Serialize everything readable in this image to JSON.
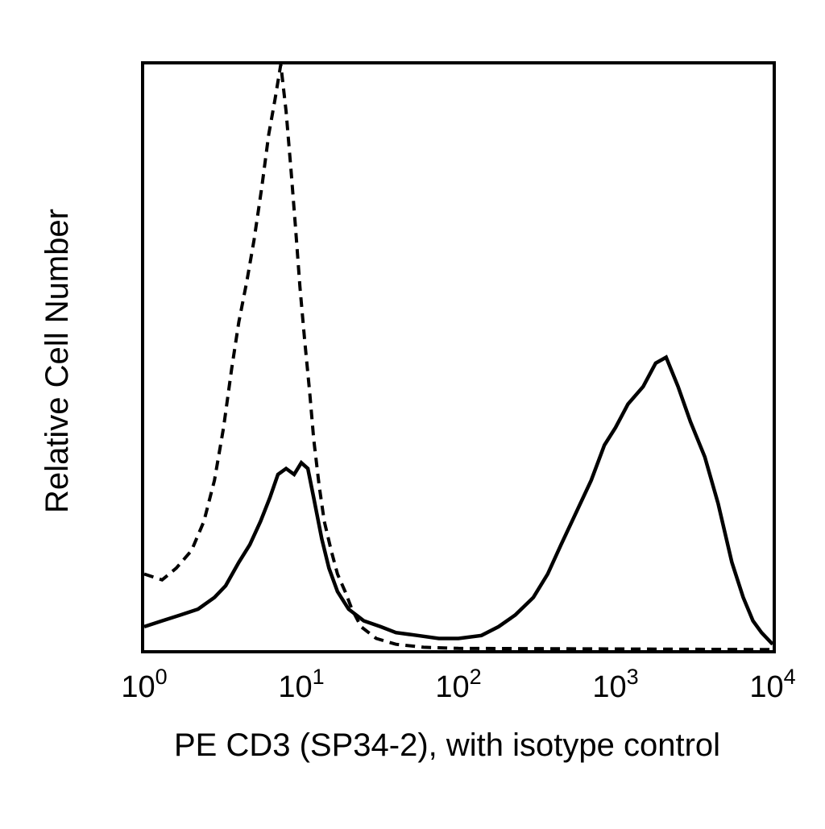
{
  "chart_data": {
    "type": "line",
    "xlabel": "PE CD3 (SP34-2), with isotype control",
    "ylabel": "Relative Cell Number",
    "x_scale": "log",
    "xlim": [
      1,
      10000
    ],
    "ylim": [
      0,
      100
    ],
    "x_ticks": [
      {
        "value": 1,
        "base": "10",
        "exp": "0"
      },
      {
        "value": 10,
        "base": "10",
        "exp": "1"
      },
      {
        "value": 100,
        "base": "10",
        "exp": "2"
      },
      {
        "value": 1000,
        "base": "10",
        "exp": "3"
      },
      {
        "value": 10000,
        "base": "10",
        "exp": "4"
      }
    ],
    "grid": false,
    "legend": "none",
    "series": [
      {
        "style": "solid",
        "color": "#000000",
        "points": [
          [
            1.0,
            4
          ],
          [
            1.3,
            5
          ],
          [
            1.7,
            6
          ],
          [
            2.2,
            7
          ],
          [
            2.8,
            9
          ],
          [
            3.3,
            11
          ],
          [
            4.0,
            15
          ],
          [
            4.7,
            18
          ],
          [
            5.5,
            22
          ],
          [
            6.3,
            26
          ],
          [
            7.1,
            30
          ],
          [
            8.0,
            31
          ],
          [
            9.0,
            30
          ],
          [
            10.0,
            32
          ],
          [
            11.0,
            31
          ],
          [
            12.0,
            26
          ],
          [
            13.5,
            19
          ],
          [
            15.0,
            14
          ],
          [
            17.0,
            10
          ],
          [
            20.0,
            7
          ],
          [
            25.0,
            5
          ],
          [
            32.0,
            4
          ],
          [
            40.0,
            3
          ],
          [
            55.0,
            2.5
          ],
          [
            75.0,
            2
          ],
          [
            100.0,
            2
          ],
          [
            140.0,
            2.5
          ],
          [
            180.0,
            4
          ],
          [
            230.0,
            6
          ],
          [
            300.0,
            9
          ],
          [
            370.0,
            13
          ],
          [
            450.0,
            18
          ],
          [
            550.0,
            23
          ],
          [
            700.0,
            29
          ],
          [
            850.0,
            35
          ],
          [
            1000.0,
            38
          ],
          [
            1200.0,
            42
          ],
          [
            1500.0,
            45
          ],
          [
            1800.0,
            49
          ],
          [
            2100.0,
            50
          ],
          [
            2500.0,
            45
          ],
          [
            3000.0,
            39
          ],
          [
            3700.0,
            33
          ],
          [
            4500.0,
            25
          ],
          [
            5500.0,
            15
          ],
          [
            6500.0,
            9
          ],
          [
            7500.0,
            5
          ],
          [
            8500.0,
            3
          ],
          [
            10000.0,
            1
          ]
        ]
      },
      {
        "style": "dashed",
        "color": "#000000",
        "points": [
          [
            1.0,
            13
          ],
          [
            1.3,
            12
          ],
          [
            1.6,
            14
          ],
          [
            2.0,
            17
          ],
          [
            2.4,
            22
          ],
          [
            2.8,
            29
          ],
          [
            3.2,
            38
          ],
          [
            3.6,
            48
          ],
          [
            4.0,
            56
          ],
          [
            4.5,
            63
          ],
          [
            5.0,
            70
          ],
          [
            5.6,
            79
          ],
          [
            6.2,
            88
          ],
          [
            6.8,
            94
          ],
          [
            7.4,
            100
          ],
          [
            8.0,
            92
          ],
          [
            8.6,
            82
          ],
          [
            9.2,
            72
          ],
          [
            9.8,
            62
          ],
          [
            10.5,
            53
          ],
          [
            11.3,
            44
          ],
          [
            12.0,
            36
          ],
          [
            13.0,
            28
          ],
          [
            14.0,
            22
          ],
          [
            15.5,
            17
          ],
          [
            17.0,
            13
          ],
          [
            19.0,
            10
          ],
          [
            21.0,
            7
          ],
          [
            24.0,
            4
          ],
          [
            30.0,
            2
          ],
          [
            40.0,
            1
          ],
          [
            60.0,
            0.5
          ],
          [
            100.0,
            0.3
          ],
          [
            1000.0,
            0.2
          ],
          [
            10000.0,
            0.1
          ]
        ]
      }
    ]
  }
}
